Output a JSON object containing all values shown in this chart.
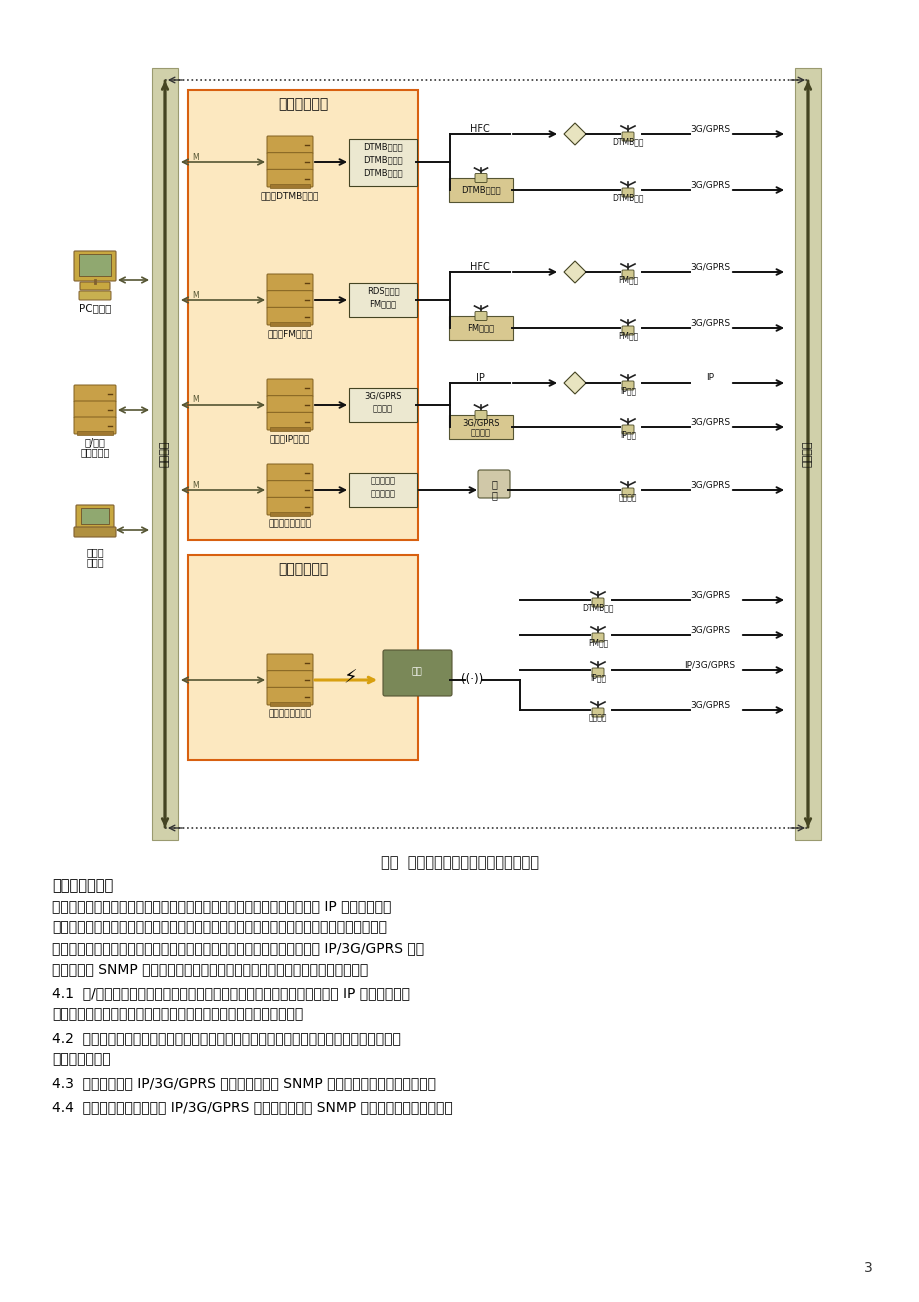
{
  "title": "图二  多网络结构广播系统管理网络框图",
  "page_num": "3",
  "bg_color": "#ffffff",
  "section_title_1": "固定传输网络",
  "section_title_2": "移动传输网络",
  "text_body": [
    "系统功能概述：",
    "上图展示了在省、市、县和多网络结构广播系统中，上级网管服务器通过 IP 网络调用各县",
    "网络网关接口，网络网关在收到上级网管指令后，解析指令，并通过各自网络和协议管理和",
    "控制相应的终端设备。上级网管服务器与各县和各网络终端设备之间利用 IP/3G/GPRS 通信",
    "网络，运用 SNMP 协议直接和终端通信，实现控制和获取终端设备状态信息等。",
    "4.1  省/市网管服务器与各县网关实现统一接口规范和传输协议规范，通过 IP 网络实现网管",
    "服务器与网关通信，达到网管服务器远程控制管理终端设备的目的；",
    "4.2  各县网关主要功能是解析中心的网管服务器下发的控制指令信息，并通过各自网络控制",
    "相应终端设备；",
    "4.3  终端设备利用 IP/3G/GPRS 等通讯网络通过 SNMP 协议回传数据给网管服务器；",
    "4.4  网管服务器也可以利用 IP/3G/GPRS 等通讯网络通过 SNMP 协议直接控制终端设备；"
  ]
}
